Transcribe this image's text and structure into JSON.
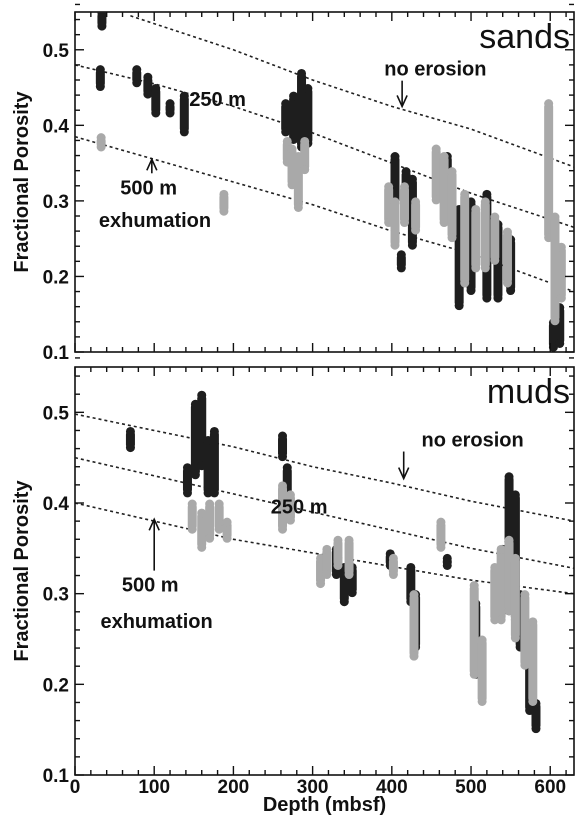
{
  "colors": {
    "dark_points": "#1e1e1e",
    "light_points": "#a9a9a9",
    "axis": "#111111"
  },
  "chart_data": [
    {
      "type": "scatter",
      "panel_label": "sands",
      "ylabel": "Fractional Porosity",
      "xlabel": "",
      "xlim": [
        0,
        630
      ],
      "ylim": [
        0.1,
        0.55
      ],
      "x_ticks": [
        0,
        100,
        200,
        300,
        400,
        500,
        600
      ],
      "y_ticks": [
        0.1,
        0.2,
        0.3,
        0.4,
        0.5
      ],
      "y_tick_labels": [
        "0.1",
        "0.2",
        "0.3",
        "0.4",
        "0.5"
      ],
      "grid": false,
      "curves": [
        {
          "label": "no erosion",
          "points": [
            [
              70,
              0.545
            ],
            [
              200,
              0.5
            ],
            [
              300,
              0.46
            ],
            [
              400,
              0.425
            ],
            [
              500,
              0.395
            ],
            [
              630,
              0.345
            ]
          ]
        },
        {
          "label": "250 m",
          "points": [
            [
              0,
              0.48
            ],
            [
              100,
              0.455
            ],
            [
              200,
              0.425
            ],
            [
              300,
              0.39
            ],
            [
              400,
              0.35
            ],
            [
              500,
              0.31
            ],
            [
              630,
              0.265
            ]
          ]
        },
        {
          "label": "500 m",
          "points": [
            [
              0,
              0.385
            ],
            [
              100,
              0.355
            ],
            [
              200,
              0.325
            ],
            [
              300,
              0.295
            ],
            [
              400,
              0.26
            ],
            [
              500,
              0.23
            ],
            [
              630,
              0.18
            ]
          ]
        }
      ],
      "annotations": [
        {
          "text": "no erosion",
          "x": 455,
          "y": 0.475,
          "arrow_to": [
            413,
            0.425
          ]
        },
        {
          "text": "250 m",
          "x": 180,
          "y": 0.435
        },
        {
          "text": "500 m",
          "x": 93,
          "y": 0.318,
          "arrow_to": [
            97,
            0.355
          ]
        },
        {
          "text": "exhumation",
          "x": 101,
          "y": 0.275
        }
      ],
      "series": [
        {
          "color": "dark",
          "clusters": [
            [
              34,
              0.53,
              0.55
            ],
            [
              32,
              0.45,
              0.475
            ],
            [
              78,
              0.455,
              0.475
            ],
            [
              92,
              0.44,
              0.465
            ],
            [
              102,
              0.415,
              0.45
            ],
            [
              120,
              0.415,
              0.43
            ],
            [
              138,
              0.39,
              0.44
            ],
            [
              266,
              0.39,
              0.43
            ],
            [
              276,
              0.38,
              0.44
            ],
            [
              286,
              0.37,
              0.47
            ],
            [
              294,
              0.375,
              0.45
            ],
            [
              404,
              0.26,
              0.36
            ],
            [
              412,
              0.21,
              0.23
            ],
            [
              418,
              0.28,
              0.34
            ],
            [
              426,
              0.24,
              0.33
            ],
            [
              470,
              0.29,
              0.36
            ],
            [
              485,
              0.16,
              0.29
            ],
            [
              500,
              0.18,
              0.3
            ],
            [
              520,
              0.17,
              0.31
            ],
            [
              534,
              0.17,
              0.27
            ],
            [
              550,
              0.18,
              0.25
            ],
            [
              604,
              0.105,
              0.14
            ],
            [
              612,
              0.11,
              0.16
            ]
          ]
        },
        {
          "color": "light",
          "clusters": [
            [
              33,
              0.37,
              0.385
            ],
            [
              188,
              0.285,
              0.31
            ],
            [
              268,
              0.35,
              0.38
            ],
            [
              274,
              0.32,
              0.37
            ],
            [
              282,
              0.29,
              0.36
            ],
            [
              290,
              0.34,
              0.38
            ],
            [
              396,
              0.27,
              0.32
            ],
            [
              404,
              0.24,
              0.3
            ],
            [
              416,
              0.27,
              0.32
            ],
            [
              430,
              0.26,
              0.3
            ],
            [
              456,
              0.3,
              0.37
            ],
            [
              466,
              0.27,
              0.36
            ],
            [
              476,
              0.25,
              0.34
            ],
            [
              492,
              0.19,
              0.31
            ],
            [
              506,
              0.21,
              0.29
            ],
            [
              518,
              0.21,
              0.3
            ],
            [
              530,
              0.22,
              0.28
            ],
            [
              546,
              0.19,
              0.26
            ],
            [
              598,
              0.25,
              0.43
            ],
            [
              606,
              0.14,
              0.28
            ],
            [
              614,
              0.17,
              0.24
            ]
          ]
        }
      ]
    },
    {
      "type": "scatter",
      "panel_label": "muds",
      "ylabel": "Fractional Porosity",
      "xlabel": "Depth (mbsf)",
      "xlim": [
        0,
        630
      ],
      "ylim": [
        0.1,
        0.55
      ],
      "x_ticks": [
        0,
        100,
        200,
        300,
        400,
        500,
        600
      ],
      "x_tick_labels": [
        "0",
        "100",
        "200",
        "300",
        "400",
        "500",
        "600"
      ],
      "y_ticks": [
        0.1,
        0.2,
        0.3,
        0.4,
        0.5
      ],
      "y_tick_labels": [
        "0.1",
        "0.2",
        "0.3",
        "0.4",
        "0.5"
      ],
      "grid": false,
      "curves": [
        {
          "label": "no erosion",
          "points": [
            [
              0,
              0.498
            ],
            [
              100,
              0.48
            ],
            [
              200,
              0.462
            ],
            [
              300,
              0.44
            ],
            [
              400,
              0.422
            ],
            [
              500,
              0.402
            ],
            [
              630,
              0.38
            ]
          ]
        },
        {
          "label": "250 m",
          "points": [
            [
              0,
              0.45
            ],
            [
              100,
              0.43
            ],
            [
              200,
              0.41
            ],
            [
              300,
              0.39
            ],
            [
              400,
              0.37
            ],
            [
              500,
              0.35
            ],
            [
              630,
              0.328
            ]
          ]
        },
        {
          "label": "500 m",
          "points": [
            [
              0,
              0.4
            ],
            [
              100,
              0.38
            ],
            [
              200,
              0.36
            ],
            [
              300,
              0.345
            ],
            [
              400,
              0.33
            ],
            [
              500,
              0.315
            ],
            [
              630,
              0.3
            ]
          ]
        }
      ],
      "annotations": [
        {
          "text": "no erosion",
          "x": 502,
          "y": 0.47,
          "arrow_to": [
            415,
            0.427
          ]
        },
        {
          "text": "250 m",
          "x": 283,
          "y": 0.396
        },
        {
          "text": "500 m",
          "x": 95,
          "y": 0.31,
          "arrow_to": [
            100,
            0.382
          ]
        },
        {
          "text": "exhumation",
          "x": 103,
          "y": 0.27
        }
      ],
      "series": [
        {
          "color": "dark",
          "clusters": [
            [
              70,
              0.46,
              0.48
            ],
            [
              142,
              0.41,
              0.44
            ],
            [
              152,
              0.43,
              0.51
            ],
            [
              160,
              0.44,
              0.52
            ],
            [
              168,
              0.41,
              0.47
            ],
            [
              176,
              0.41,
              0.48
            ],
            [
              262,
              0.45,
              0.475
            ],
            [
              268,
              0.41,
              0.44
            ],
            [
              330,
              0.32,
              0.35
            ],
            [
              340,
              0.29,
              0.33
            ],
            [
              350,
              0.3,
              0.33
            ],
            [
              398,
              0.33,
              0.345
            ],
            [
              424,
              0.29,
              0.33
            ],
            [
              430,
              0.24,
              0.3
            ],
            [
              470,
              0.33,
              0.34
            ],
            [
              506,
              0.21,
              0.29
            ],
            [
              540,
              0.28,
              0.35
            ],
            [
              548,
              0.28,
              0.43
            ],
            [
              556,
              0.27,
              0.41
            ],
            [
              562,
              0.24,
              0.3
            ],
            [
              574,
              0.17,
              0.23
            ],
            [
              582,
              0.15,
              0.18
            ]
          ]
        },
        {
          "color": "light",
          "clusters": [
            [
              148,
              0.37,
              0.4
            ],
            [
              160,
              0.35,
              0.39
            ],
            [
              170,
              0.36,
              0.4
            ],
            [
              182,
              0.37,
              0.4
            ],
            [
              192,
              0.36,
              0.38
            ],
            [
              262,
              0.37,
              0.42
            ],
            [
              272,
              0.38,
              0.41
            ],
            [
              310,
              0.31,
              0.34
            ],
            [
              318,
              0.32,
              0.35
            ],
            [
              332,
              0.33,
              0.36
            ],
            [
              346,
              0.32,
              0.36
            ],
            [
              402,
              0.32,
              0.34
            ],
            [
              428,
              0.23,
              0.3
            ],
            [
              462,
              0.35,
              0.38
            ],
            [
              504,
              0.21,
              0.31
            ],
            [
              514,
              0.18,
              0.25
            ],
            [
              530,
              0.27,
              0.33
            ],
            [
              538,
              0.27,
              0.35
            ],
            [
              548,
              0.28,
              0.36
            ],
            [
              556,
              0.25,
              0.34
            ],
            [
              568,
              0.22,
              0.3
            ],
            [
              578,
              0.18,
              0.27
            ]
          ]
        }
      ]
    }
  ]
}
